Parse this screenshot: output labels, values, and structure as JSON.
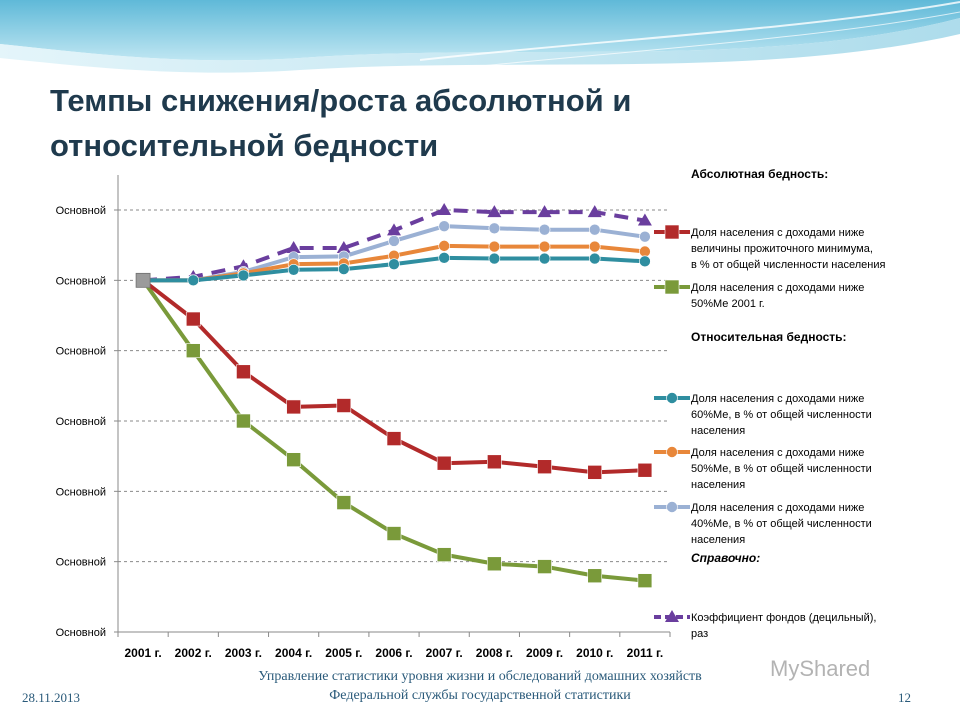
{
  "slide": {
    "title_line1": "Темпы снижения/роста абсолютной и",
    "title_line2": "относительной бедности",
    "footer_date": "28.11.2013",
    "footer_org_line1": "Управление статистики уровня жизни и обследований домашних хозяйств",
    "footer_org_line2": "Федеральной службы государственной статистики",
    "page_number": "12",
    "watermark": "MyShared"
  },
  "colors": {
    "subsistence": "#b22a2a",
    "half_median_2001": "#7a9a3a",
    "median60": "#2f8ea0",
    "median50": "#e8873a",
    "median40": "#9bb1d4",
    "funds_ratio": "#6a3e9e"
  },
  "chart_data": {
    "type": "line",
    "categories": [
      "2001 г.",
      "2002 г.",
      "2003 г.",
      "2004 г.",
      "2005 г.",
      "2006 г.",
      "2007 г.",
      "2008 г.",
      "2009 г.",
      "2010 г.",
      "2011 г."
    ],
    "y_tick_labels": [
      "Основной",
      "Основной",
      "Основной",
      "Основной",
      "Основной",
      "Основной",
      "Основной"
    ],
    "ylim": [
      0,
      6
    ],
    "grid": true,
    "legend_position": "right",
    "legend_groups": [
      {
        "heading": "Абсолютная бедность:",
        "style": "bold",
        "series": [
          "subsistence",
          "half_median_2001"
        ]
      },
      {
        "heading": "Относительная бедность:",
        "style": "bold",
        "series": [
          "median60",
          "median50",
          "median40"
        ]
      },
      {
        "heading": "Справочно:",
        "style": "bold-italic",
        "series": [
          "funds_ratio"
        ]
      }
    ],
    "series": [
      {
        "key": "subsistence",
        "name": "Доля населения с доходами ниже величины прожиточного минимума, в % от общей численности населения",
        "name_lines": [
          "Доля населения с доходами ниже",
          "величины прожиточного минимума,",
          "в % от общей численности населения"
        ],
        "marker": "square",
        "dash": false,
        "values": [
          5.0,
          4.45,
          3.7,
          3.2,
          3.22,
          2.75,
          2.4,
          2.42,
          2.35,
          2.27,
          2.3
        ]
      },
      {
        "key": "half_median_2001",
        "name": "Доля населения с доходами ниже 50%Ме 2001 г.",
        "name_lines": [
          "Доля населения с доходами ниже",
          "50%Ме 2001 г."
        ],
        "marker": "square",
        "dash": false,
        "values": [
          5.0,
          4.0,
          3.0,
          2.45,
          1.84,
          1.4,
          1.1,
          0.97,
          0.93,
          0.8,
          0.73
        ]
      },
      {
        "key": "median60",
        "name": "Доля населения с доходами ниже 60%Ме, в % от общей численности населения",
        "name_lines": [
          "Доля населения с доходами ниже",
          "60%Ме, в % от общей численности",
          "населения"
        ],
        "marker": "circle",
        "dash": false,
        "values": [
          5.0,
          5.0,
          5.07,
          5.15,
          5.16,
          5.23,
          5.32,
          5.31,
          5.31,
          5.31,
          5.27
        ]
      },
      {
        "key": "median50",
        "name": "Доля населения с доходами ниже 50%Ме, в % от общей численности населения",
        "name_lines": [
          "Доля населения с доходами ниже",
          "50%Ме, в % от общей численности",
          "населения"
        ],
        "marker": "circle",
        "dash": false,
        "values": [
          5.0,
          5.0,
          5.1,
          5.23,
          5.24,
          5.35,
          5.49,
          5.48,
          5.48,
          5.48,
          5.41
        ]
      },
      {
        "key": "median40",
        "name": "Доля населения с доходами ниже 40%Ме, в % от общей численности населения",
        "name_lines": [
          "Доля населения с доходами ниже",
          "40%Ме, в % от общей численности",
          "населения"
        ],
        "marker": "circle",
        "dash": false,
        "values": [
          5.0,
          5.0,
          5.12,
          5.33,
          5.34,
          5.56,
          5.77,
          5.74,
          5.72,
          5.72,
          5.62
        ]
      },
      {
        "key": "funds_ratio",
        "name": "Коэффициент фондов (децильный), раз",
        "name_lines": [
          "Коэффициент фондов (децильный),",
          "раз"
        ],
        "marker": "triangle",
        "dash": true,
        "values": [
          5.0,
          5.05,
          5.2,
          5.46,
          5.46,
          5.71,
          6.0,
          5.97,
          5.97,
          5.97,
          5.85
        ]
      }
    ]
  }
}
